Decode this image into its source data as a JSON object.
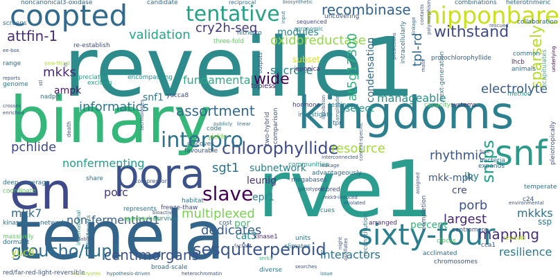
{
  "words": [
    {
      "text": "reveille1",
      "color": "#2e8b8b"
    },
    {
      "text": "binary",
      "color": "#35b779"
    },
    {
      "text": "rve1",
      "color": "#2a9d8f"
    },
    {
      "text": "tenela",
      "color": "#33658a"
    },
    {
      "text": "kingdoms",
      "color": "#2c7f8e"
    },
    {
      "text": "en",
      "color": "#3f4a8a"
    },
    {
      "text": "pora",
      "color": "#3b528b"
    },
    {
      "text": "coopted",
      "color": "#306a8e"
    },
    {
      "text": "sixty-four",
      "color": "#2a7e8e"
    },
    {
      "text": "snf",
      "color": "#2c9a8a"
    },
    {
      "text": "nipponbare",
      "color": "#c8e020"
    },
    {
      "text": "tentative",
      "color": "#25a184"
    },
    {
      "text": "chlorophyllide",
      "color": "#3e4c8a"
    },
    {
      "text": "interpro",
      "color": "#2d718e"
    },
    {
      "text": "slave",
      "color": "#440154"
    },
    {
      "text": "groucho/tup1",
      "color": "#2e6f8e"
    },
    {
      "text": "sesquiterpenoid",
      "color": "#39568c"
    },
    {
      "text": "centimorgans",
      "color": "#3b528b"
    },
    {
      "text": "cry2h-seq",
      "color": "#453781"
    },
    {
      "text": "recombinase",
      "color": "#33638d"
    },
    {
      "text": "withstand",
      "color": "#3e4989"
    },
    {
      "text": "attfin-1",
      "color": "#472c7a"
    },
    {
      "text": "validation",
      "color": "#22a785"
    },
    {
      "text": "informatics",
      "color": "#2a788e"
    },
    {
      "text": "assortment",
      "color": "#31688e"
    },
    {
      "text": "mkks",
      "color": "#482878"
    },
    {
      "text": "wide",
      "color": "#440154"
    },
    {
      "text": "oxidoreductase",
      "color": "#8fd744"
    },
    {
      "text": "at5g17300",
      "color": "#2fb47c"
    },
    {
      "text": "sucrose",
      "color": "#25858e"
    },
    {
      "text": "fundamental",
      "color": "#27ad81"
    },
    {
      "text": "snips",
      "color": "#1fa187"
    },
    {
      "text": "tpl-rd",
      "color": "#31688e"
    },
    {
      "text": "sparsely",
      "color": "#b5de2b"
    },
    {
      "text": "electrolyte",
      "color": "#38598c"
    },
    {
      "text": "condensation",
      "color": "#31688e"
    },
    {
      "text": "resource",
      "color": "#a0da39"
    },
    {
      "text": "rhythmic",
      "color": "#39568c"
    },
    {
      "text": "mapping",
      "color": "#472c7a"
    },
    {
      "text": "mkkks",
      "color": "#2d708e"
    },
    {
      "text": "porb",
      "color": "#3b528b"
    },
    {
      "text": "pchlide",
      "color": "#3e4989"
    },
    {
      "text": "nonfermenting",
      "color": "#1f9e89"
    },
    {
      "text": "mkk7",
      "color": "#31688e"
    },
    {
      "text": "porc",
      "color": "#443983"
    },
    {
      "text": "non-fermenting1",
      "color": "#355f8d"
    },
    {
      "text": "multiplexed",
      "color": "#7ad151"
    },
    {
      "text": "sgt1",
      "color": "#2c728e"
    },
    {
      "text": "epr1",
      "color": "#287c8e"
    },
    {
      "text": "largest",
      "color": "#482475"
    },
    {
      "text": "percent",
      "color": "#35b779"
    },
    {
      "text": "dedicates",
      "color": "#365c8d"
    },
    {
      "text": "interactors",
      "color": "#2c728e"
    },
    {
      "text": "resilience",
      "color": "#2a788e"
    },
    {
      "text": "subnetwork",
      "color": "#26818e"
    },
    {
      "text": "mkk-mpk",
      "color": "#38598c"
    },
    {
      "text": "leunig",
      "color": "#46327e"
    },
    {
      "text": "manageable",
      "color": "#20928c"
    },
    {
      "text": "select",
      "color": "#1e9b8a"
    },
    {
      "text": "modules",
      "color": "#23898e"
    },
    {
      "text": "ampk",
      "color": "#481769"
    },
    {
      "text": "snf1",
      "color": "#2a788e"
    },
    {
      "text": "yuc8",
      "color": "#b5de2b"
    },
    {
      "text": "lhy",
      "color": "#277f8e"
    },
    {
      "text": "cre",
      "color": "#3e4989"
    },
    {
      "text": "ssp",
      "color": "#2a768e"
    },
    {
      "text": "por",
      "color": "#44bf70"
    },
    {
      "text": "cat3",
      "color": "#238a8d"
    },
    {
      "text": "noncanonical3-oxidase",
      "color": "#33638d"
    },
    {
      "text": "candidate",
      "color": "#306a8e"
    },
    {
      "text": "reciprocal",
      "color": "#2e6e8e"
    },
    {
      "text": "biosynthetic",
      "color": "#2e6e8e"
    },
    {
      "text": "combinations",
      "color": "#31688e"
    },
    {
      "text": "heterotrimeric",
      "color": "#31688e"
    },
    {
      "text": "screens",
      "color": "#2c728e"
    },
    {
      "text": "re-establish",
      "color": "#3e4989"
    },
    {
      "text": "hitherto",
      "color": "#306a8e"
    },
    {
      "text": "three-fold",
      "color": "#5ec962"
    },
    {
      "text": "agronomic",
      "color": "#26818e"
    },
    {
      "text": "sequenced",
      "color": "#414487"
    },
    {
      "text": "uncovering",
      "color": "#3b528b"
    },
    {
      "text": "protochlorophyllide",
      "color": "#365c8d"
    },
    {
      "text": "collaboration",
      "color": "#2f6b8e"
    },
    {
      "text": "range",
      "color": "#31688e"
    },
    {
      "text": "one-third",
      "color": "#addc30"
    },
    {
      "text": "subset",
      "color": "#d8e219"
    },
    {
      "text": "japonica",
      "color": "#46327e"
    },
    {
      "text": "appreciated",
      "color": "#1fa187"
    },
    {
      "text": "exciting",
      "color": "#1fa187"
    },
    {
      "text": "encompassing",
      "color": "#20928c"
    },
    {
      "text": "topless",
      "color": "#482878"
    },
    {
      "text": "yucca8",
      "color": "#3e4989"
    },
    {
      "text": "nadph",
      "color": "#2d708e"
    },
    {
      "text": "hormone",
      "color": "#424086"
    },
    {
      "text": "testing",
      "color": "#277f8e"
    },
    {
      "text": "capacity",
      "color": "#5ec962"
    },
    {
      "text": "systems",
      "color": "#46327e"
    },
    {
      "text": "method",
      "color": "#1f9a8a"
    },
    {
      "text": "common",
      "color": "#2c728e"
    },
    {
      "text": "animals",
      "color": "#31688e"
    },
    {
      "text": "lhcb",
      "color": "#482878"
    },
    {
      "text": "enriched",
      "color": "#3b528b"
    },
    {
      "text": "crosses",
      "color": "#3b528b"
    },
    {
      "text": "genome",
      "color": "#2a788e"
    },
    {
      "text": "reports",
      "color": "#3b528b"
    },
    {
      "text": "ee-box",
      "color": "#3b528b"
    },
    {
      "text": "code",
      "color": "#2c728e"
    },
    {
      "text": "yields",
      "color": "#7ad151"
    },
    {
      "text": "discover",
      "color": "#33638d"
    },
    {
      "text": "favourable",
      "color": "#3b528b"
    },
    {
      "text": "two-hybrid",
      "color": "#3b528b"
    },
    {
      "text": "comparison",
      "color": "#3b528b"
    },
    {
      "text": "tpr",
      "color": "#31688e"
    },
    {
      "text": "interconnected",
      "color": "#3b528b"
    },
    {
      "text": "communities",
      "color": "#1f9e89"
    },
    {
      "text": "deep-coverage",
      "color": "#2d708e"
    },
    {
      "text": "share",
      "color": "#2c728e"
    },
    {
      "text": "coordinate",
      "color": "#5ec962"
    },
    {
      "text": "represents",
      "color": "#2d708e"
    },
    {
      "text": "freeze-thaw",
      "color": "#3e4989"
    },
    {
      "text": "habitat",
      "color": "#2a788e"
    },
    {
      "text": "megabases",
      "color": "#365c8d"
    },
    {
      "text": "advantageously",
      "color": "#31688e"
    },
    {
      "text": "inbred",
      "color": "#3e4989"
    },
    {
      "text": "mkk9-induced",
      "color": "#3b528b"
    },
    {
      "text": "etiolated",
      "color": "#3b528b"
    },
    {
      "text": "kinases",
      "color": "#2d708e"
    },
    {
      "text": "network",
      "color": "#31688e"
    },
    {
      "text": "approaches",
      "color": "#5ec962"
    },
    {
      "text": "survival",
      "color": "#277f8e"
    },
    {
      "text": "cost",
      "color": "#33638d"
    },
    {
      "text": "cues",
      "color": "#2a788e"
    },
    {
      "text": "arranged",
      "color": "#472c7a"
    },
    {
      "text": "centromere",
      "color": "#3b528b"
    },
    {
      "text": "reveals",
      "color": "#b5de2b"
    },
    {
      "text": "temperate",
      "color": "#2c728e"
    },
    {
      "text": "massively",
      "color": "#5ec962"
    },
    {
      "text": "dormant",
      "color": "#2d708e"
    },
    {
      "text": "kinase1",
      "color": "#472c7a"
    },
    {
      "text": "units",
      "color": "#2c728e"
    },
    {
      "text": "climates",
      "color": "#306a8e"
    },
    {
      "text": "clocks",
      "color": "#5ec962"
    },
    {
      "text": "cca1",
      "color": "#3b528b"
    },
    {
      "text": "acclimated",
      "color": "#31688e"
    },
    {
      "text": "chromosomes",
      "color": "#3b528b"
    },
    {
      "text": "broad-scale",
      "color": "#31688e"
    },
    {
      "text": "diverse",
      "color": "#2a788e"
    },
    {
      "text": "searches",
      "color": "#3b528b"
    },
    {
      "text": "red/far-red-light-reversible",
      "color": "#3b528b"
    },
    {
      "text": "hypothesis-driven",
      "color": "#31688e"
    },
    {
      "text": "heterochromatin",
      "color": "#3b528b"
    },
    {
      "text": "issue",
      "color": "#2d708e"
    },
    {
      "text": "snrk1",
      "color": "#35b779"
    },
    {
      "text": "eukaryotes",
      "color": "#addc30"
    },
    {
      "text": "adjustments",
      "color": "#2c728e"
    },
    {
      "text": "international",
      "color": "#20928c"
    },
    {
      "text": "death",
      "color": "#3b528b"
    },
    {
      "text": "corepressors",
      "color": "#3b528b"
    },
    {
      "text": "outputs",
      "color": "#3b528b"
    },
    {
      "text": "input",
      "color": "#2c728e"
    },
    {
      "text": "amplitude",
      "color": "#31688e"
    },
    {
      "text": "imbibition",
      "color": "#3b528b"
    },
    {
      "text": "linkage",
      "color": "#31688e"
    },
    {
      "text": "contacts",
      "color": "#3b528b"
    },
    {
      "text": "polymorphism",
      "color": "#3b528b"
    },
    {
      "text": "next-generation",
      "color": "#2a788e"
    },
    {
      "text": "intracellularly",
      "color": "#2d708e"
    },
    {
      "text": "predictions",
      "color": "#3b528b"
    },
    {
      "text": "recapitulates",
      "color": "#35b779"
    },
    {
      "text": "underlying",
      "color": "#440154"
    },
    {
      "text": "pleiotropically",
      "color": "#3b528b"
    },
    {
      "text": "reconstitution",
      "color": "#2a788e"
    },
    {
      "text": "completion",
      "color": "#3b528b"
    },
    {
      "text": "stl",
      "color": "#3b528b"
    },
    {
      "text": "rt",
      "color": "#3b528b"
    },
    {
      "text": "expands",
      "color": "#31688e"
    },
    {
      "text": "bacteria",
      "color": "#2c728e"
    },
    {
      "text": "fuse",
      "color": "#3b528b"
    },
    {
      "text": "genotyped",
      "color": "#3b528b"
    },
    {
      "text": "publicly",
      "color": "#2d708e"
    },
    {
      "text": "linear",
      "color": "#2d708e"
    },
    {
      "text": "technologies",
      "color": "#3b528b"
    },
    {
      "text": "factor4",
      "color": "#3b528b"
    },
    {
      "text": "oscillates",
      "color": "#3b528b"
    },
    {
      "text": "night",
      "color": "#3b528b"
    },
    {
      "text": "assigned",
      "color": "#3b528b"
    },
    {
      "text": "mpks",
      "color": "#31688e"
    },
    {
      "text": "c24",
      "color": "#3b528b"
    },
    {
      "text": "environmental",
      "color": "#3b528b"
    },
    {
      "text": "bioactive",
      "color": "#3b528b"
    },
    {
      "text": "context-specific",
      "color": "#3b528b"
    },
    {
      "text": "mass",
      "color": "#3b528b"
    },
    {
      "text": "rescued",
      "color": "#3b528b"
    },
    {
      "text": "vegetables",
      "color": "#3b528b"
    },
    {
      "text": "leakage",
      "color": "#3b528b"
    },
    {
      "text": "investigate",
      "color": "#2a788e"
    }
  ]
}
